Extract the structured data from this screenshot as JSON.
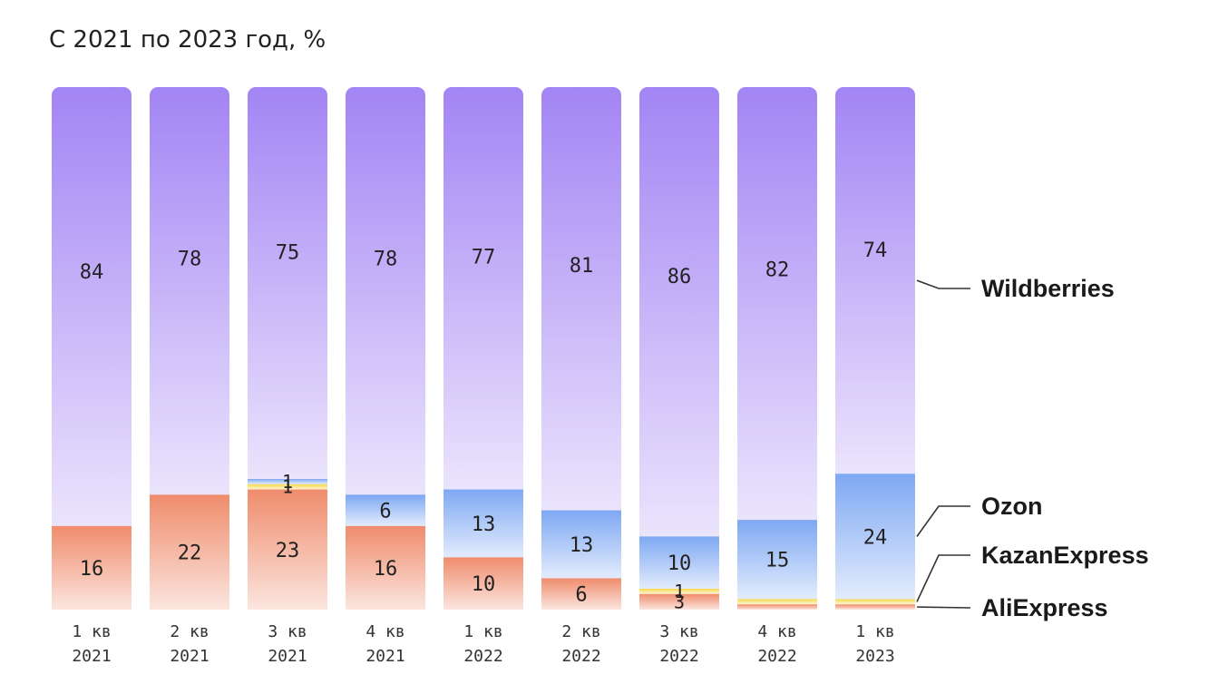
{
  "chart_data": {
    "type": "bar",
    "stacked": true,
    "normalized": true,
    "title": "С 2021 по 2023 год, %",
    "categories": [
      [
        "1 кв",
        "2021"
      ],
      [
        "2 кв",
        "2021"
      ],
      [
        "3 кв",
        "2021"
      ],
      [
        "4 кв",
        "2021"
      ],
      [
        "1 кв",
        "2022"
      ],
      [
        "2 кв",
        "2022"
      ],
      [
        "3 кв",
        "2022"
      ],
      [
        "4 кв",
        "2022"
      ],
      [
        "1 кв",
        "2023"
      ]
    ],
    "series": [
      {
        "name": "AliExpress",
        "color": "#ef8c6c",
        "values": [
          16,
          22,
          23,
          16,
          10,
          6,
          3,
          1,
          1
        ],
        "labels": [
          "16",
          "22",
          "23",
          "16",
          "10",
          "6",
          "3",
          "",
          ""
        ]
      },
      {
        "name": "KazanExpress",
        "color": "#f6d84a",
        "values": [
          0,
          0,
          1,
          0,
          0,
          0,
          1,
          1,
          1
        ],
        "labels": [
          "",
          "",
          "1",
          "",
          "",
          "",
          "1",
          "",
          ""
        ]
      },
      {
        "name": "Ozon",
        "color": "#7ea8f3",
        "values": [
          0,
          0,
          1,
          6,
          13,
          13,
          10,
          15,
          24
        ],
        "labels": [
          "",
          "",
          "1",
          "6",
          "13",
          "13",
          "10",
          "15",
          "24"
        ]
      },
      {
        "name": "Wildberries",
        "color": "#a384f4",
        "values": [
          84,
          78,
          75,
          78,
          77,
          81,
          86,
          82,
          74
        ],
        "labels": [
          "84",
          "78",
          "75",
          "78",
          "77",
          "81",
          "86",
          "82",
          "74"
        ]
      }
    ],
    "ylim": [
      0,
      100
    ],
    "legend": "right",
    "grid": false
  }
}
